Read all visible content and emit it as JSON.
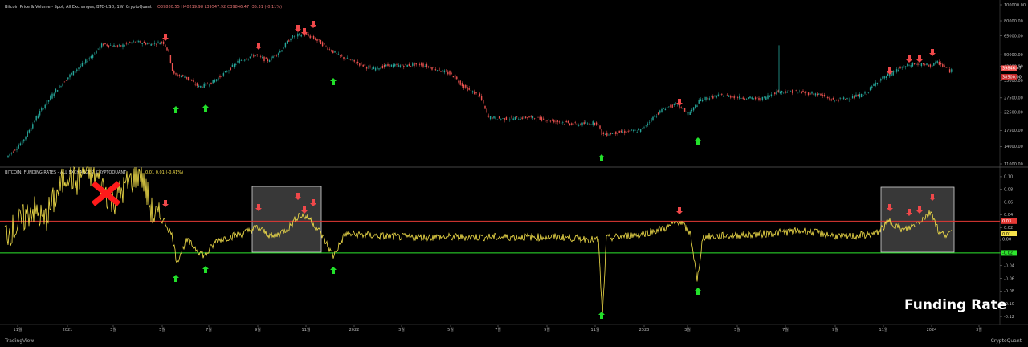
{
  "header": {
    "top_title": "Bitcoin Price & Volume - Spot, All Exchanges, BTC-USD, 1W, CryptoQuant",
    "top_ohlc": "O39880.55 H40219.98 L39547.92 C39846.47 -35.31 (-0.11%)",
    "bottom_title": "BITCOIN: FUNDING RATES - ALL EXCHANGES, CRYPTOQUANT",
    "bottom_values": "0.01  0.01 (-0.41%)"
  },
  "funding_label": "Funding Rate",
  "footer": {
    "left": "TradingView",
    "right": "CryptoQuant"
  },
  "colors": {
    "background": "#000000",
    "candle_up": "#26a69a",
    "candle_down": "#ef5350",
    "funding_line": "#f5e14a",
    "upper_threshold": "#e53935",
    "lower_threshold": "#2ee62e",
    "arrow_red": "#f0484a",
    "arrow_green": "#22e02a"
  },
  "chart_data": [
    {
      "type": "line",
      "title": "Bitcoin Price & Volume - Spot, All Exchanges, BTC-USD, 1W, CryptoQuant",
      "scale": "log",
      "y_ticks": [
        "100000.00",
        "80000.00",
        "65000.00",
        "50000.00",
        "42500.00",
        "35000.00",
        "27500.00",
        "22500.00",
        "17500.00",
        "14000.00",
        "11000.00"
      ],
      "current_price": "39846.47",
      "price_tag_small": "38500.00",
      "x_ticks": [
        "11월",
        "2021",
        "3월",
        "5월",
        "7월",
        "9월",
        "11월",
        "2022",
        "3월",
        "5월",
        "7월",
        "9월",
        "11월",
        "2023",
        "3월",
        "5월",
        "7월",
        "9월",
        "11월",
        "2024",
        "3월"
      ],
      "series": [
        {
          "x": [
            0,
            4,
            8,
            12,
            16,
            20,
            24,
            28,
            32,
            36,
            40,
            44,
            48,
            52,
            56,
            60,
            64,
            68,
            72,
            76,
            80,
            84,
            88,
            92,
            96,
            100,
            104,
            108,
            112,
            116,
            120,
            124,
            128,
            132,
            136,
            140,
            144,
            148,
            152,
            156,
            160,
            164,
            168,
            172,
            176,
            180,
            184
          ],
          "y": [
            11000,
            13500,
            19000,
            23500,
            29000,
            34000,
            47000,
            50000,
            55000,
            58000,
            57000,
            54000,
            58000,
            56000,
            40000,
            37000,
            33000,
            34000,
            32000,
            33000,
            40000,
            46000,
            48000,
            45000,
            52000,
            48000,
            61000,
            66000,
            62000,
            57000,
            51000,
            47000,
            43000,
            43000,
            39000,
            42000,
            47000,
            39000,
            31000,
            30000,
            21000,
            20000,
            23000,
            21000,
            19500,
            20000,
            19500
          ]
        }
      ],
      "arrows_red": [
        "2021-05",
        "2021-09",
        "2021-10",
        "2021-11",
        "2021-11",
        "2023-02",
        "2023-12",
        "2024-01",
        "2024-01",
        "2024-02"
      ],
      "arrows_green": [
        "2021-05",
        "2021-07",
        "2021-12",
        "2022-11",
        "2023-03"
      ]
    },
    {
      "type": "line",
      "title": "BITCOIN: FUNDING RATES - ALL EXCHANGES, CRYPTOQUANT",
      "y_ticks": [
        "0.10",
        "0.08",
        "0.06",
        "0.04",
        "0.02",
        "0.00",
        "-0.02",
        "-0.04",
        "-0.06",
        "-0.08",
        "-0.10",
        "-0.12"
      ],
      "ylim": [
        -0.13,
        0.11
      ],
      "upper_threshold": 0.03,
      "lower_threshold": -0.02,
      "upper_tag": "0.03",
      "current_tag": "0.01",
      "current_tag2": "0.00",
      "lower_tag": "-0.02"
    }
  ]
}
